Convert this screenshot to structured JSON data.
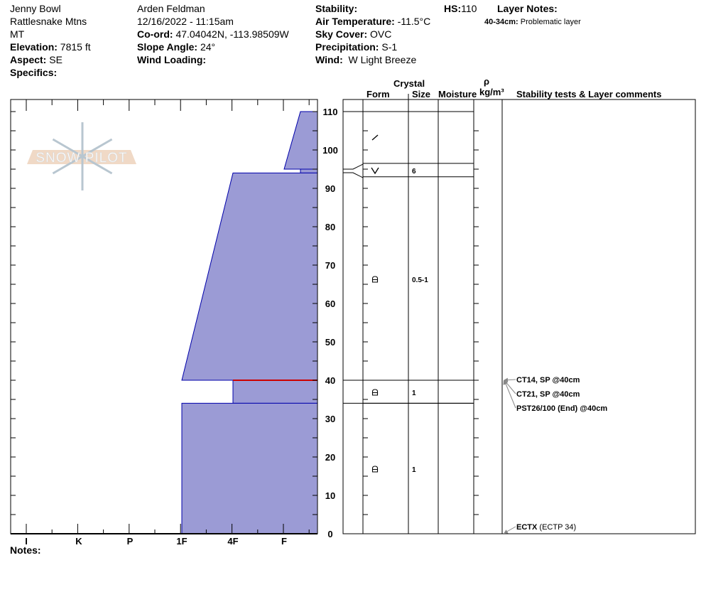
{
  "header": {
    "location": "Jenny Bowl",
    "range": "Rattlesnake Mtns",
    "state": "MT",
    "elevation_label": "Elevation:",
    "elevation": "7815 ft",
    "aspect_label": "Aspect:",
    "aspect": "SE",
    "specifics_label": "Specifics:",
    "observer": "Arden Feldman",
    "datetime": "12/16/2022 - 11:15am",
    "coord_label": "Co-ord:",
    "coord": "47.04042N, -113.98509W",
    "slope_label": "Slope Angle:",
    "slope": "24°",
    "wind_loading_label": "Wind Loading:",
    "stability_label": "Stability:",
    "air_temp_label": "Air Temperature:",
    "air_temp": "-11.5°C",
    "sky_label": "Sky Cover:",
    "sky": "OVC",
    "precip_label": "Precipitation:",
    "precip": "S-1",
    "wind_label": "Wind:",
    "wind": "W Light Breeze",
    "hs_label": "HS:",
    "hs": "110",
    "layer_notes_label": "Layer Notes:",
    "layer_note_range": "40-34cm:",
    "layer_note": "Problematic layer"
  },
  "logo_text": "SNOW PILOT",
  "columns": {
    "crystal": "Crystal",
    "form": "Form",
    "size": "Size",
    "moisture": "Moisture",
    "rho": "ρ",
    "density": "kg/m³",
    "comments": "Stability tests & Layer comments"
  },
  "hardness_labels": [
    "I",
    "K",
    "P",
    "1F",
    "4F",
    "F"
  ],
  "depth_labels": [
    "0",
    "10",
    "20",
    "30",
    "40",
    "50",
    "60",
    "70",
    "80",
    "90",
    "100",
    "110"
  ],
  "notes_label": "Notes:",
  "colors": {
    "layer_fill": "#9b9bd5",
    "layer_stroke": "#0000aa",
    "problem_line": "#cc0000",
    "logo_band": "#f0d9c6",
    "logo_flake": "#b8c6d0"
  },
  "hardness_profile": [
    {
      "top": 110,
      "bottom": 95,
      "hardness_top": "F+",
      "hardness_bottom": "F"
    },
    {
      "top": 95,
      "bottom": 94,
      "hardness": "F+"
    },
    {
      "top": 94,
      "bottom": 40,
      "hardness_top": "4F",
      "hardness_bottom": "1F"
    },
    {
      "top": 40,
      "bottom": 34,
      "hardness": "4F",
      "problematic": true
    },
    {
      "top": 34,
      "bottom": 0,
      "hardness": "1F"
    }
  ],
  "layers": [
    {
      "top": 110,
      "bottom": 96.5,
      "form": "decomposing-fragments",
      "size": ""
    },
    {
      "top": 96.5,
      "bottom": 93,
      "form": "surface-hoar",
      "size": "6"
    },
    {
      "top": 93,
      "bottom": 40,
      "form": "rounding-faceted",
      "size": "0.5-1"
    },
    {
      "top": 40,
      "bottom": 34,
      "form": "rounding-faceted",
      "size": "1"
    },
    {
      "top": 34,
      "bottom": 0,
      "form": "rounding-faceted",
      "size": "1"
    }
  ],
  "tests": [
    {
      "depth": 40,
      "label": "CT14, SP @40cm"
    },
    {
      "depth": 40,
      "label": "CT21, SP @40cm"
    },
    {
      "depth": 40,
      "label": "PST26/100 (End) @40cm"
    },
    {
      "depth": 0,
      "label": "ECTX",
      "extra": "(ECTP 34)"
    }
  ]
}
